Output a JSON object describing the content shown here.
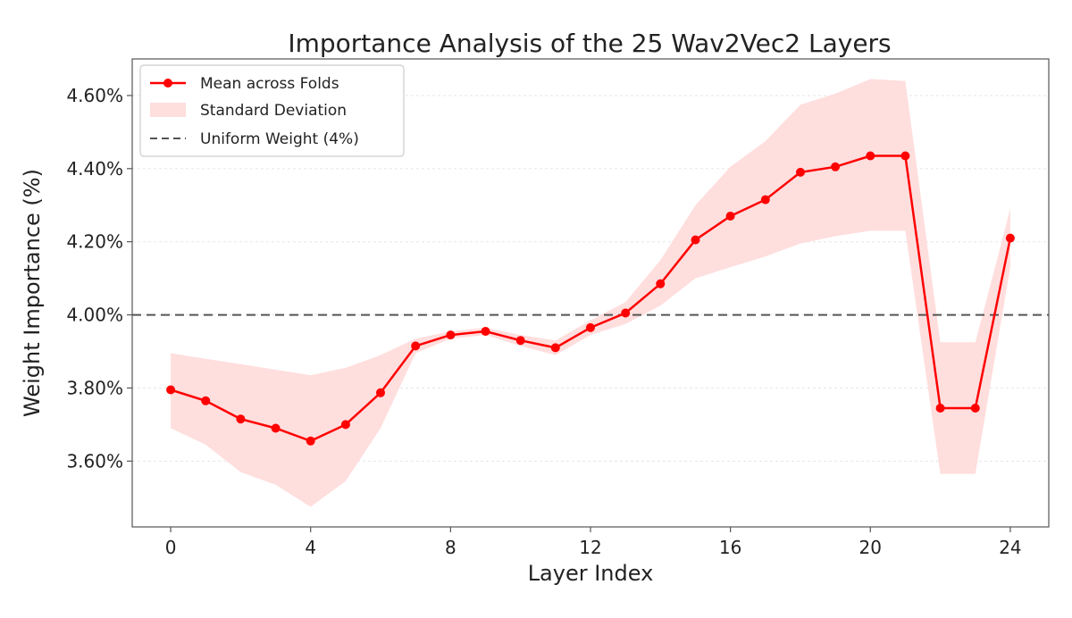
{
  "chart_data": {
    "type": "line",
    "title": "Importance Analysis of the 25 Wav2Vec2 Layers",
    "xlabel": "Layer Index",
    "ylabel": "Weight Importance (%)",
    "x": [
      0,
      1,
      2,
      3,
      4,
      5,
      6,
      7,
      8,
      9,
      10,
      11,
      12,
      13,
      14,
      15,
      16,
      17,
      18,
      19,
      20,
      21,
      22,
      23,
      24
    ],
    "xlim": [
      -1.1,
      25.1
    ],
    "ylim": [
      3.42,
      4.7
    ],
    "x_ticks": [
      0,
      4,
      8,
      12,
      16,
      20,
      24
    ],
    "x_tick_labels": [
      "0",
      "4",
      "8",
      "12",
      "16",
      "20",
      "24"
    ],
    "y_ticks": [
      3.6,
      3.8,
      4.0,
      4.2,
      4.4,
      4.6
    ],
    "y_tick_labels": [
      "3.60%",
      "3.80%",
      "4.00%",
      "4.20%",
      "4.40%",
      "4.60%"
    ],
    "grid": true,
    "legend_position": "top-left",
    "series": [
      {
        "name": "Mean across Folds",
        "color": "#ff0000",
        "values": [
          3.795,
          3.765,
          3.715,
          3.69,
          3.655,
          3.7,
          3.787,
          3.915,
          3.945,
          3.955,
          3.93,
          3.91,
          3.965,
          4.005,
          4.085,
          4.205,
          4.27,
          4.315,
          4.39,
          4.405,
          4.435,
          4.435,
          3.745,
          3.745,
          4.21
        ]
      }
    ],
    "std_band": {
      "name": "Standard Deviation",
      "color": "#ffdede",
      "upper": [
        3.895,
        3.88,
        3.865,
        3.85,
        3.835,
        3.855,
        3.89,
        3.935,
        3.955,
        3.965,
        3.945,
        3.93,
        3.985,
        4.035,
        4.15,
        4.3,
        4.405,
        4.475,
        4.575,
        4.605,
        4.645,
        4.64,
        3.925,
        3.925,
        4.29
      ],
      "lower": [
        3.69,
        3.645,
        3.57,
        3.535,
        3.475,
        3.545,
        3.69,
        3.895,
        3.935,
        3.945,
        3.915,
        3.89,
        3.945,
        3.975,
        4.025,
        4.1,
        4.13,
        4.16,
        4.195,
        4.215,
        4.23,
        4.23,
        3.565,
        3.565,
        4.13
      ]
    },
    "reference_line": {
      "name": "Uniform Weight (4%)",
      "value": 4.0,
      "color": "#555555"
    }
  }
}
